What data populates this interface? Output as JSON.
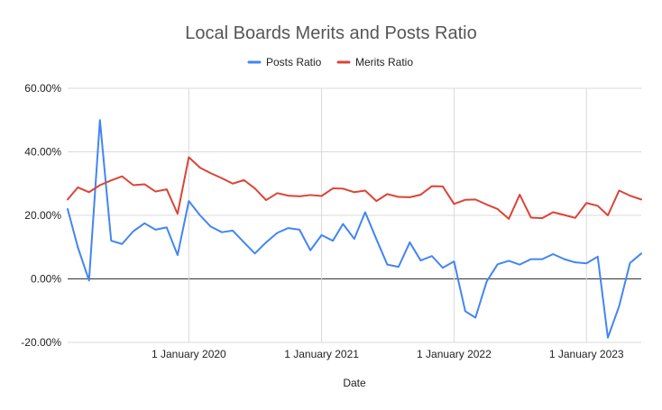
{
  "chart_data": {
    "type": "line",
    "title": "Local Boards Merits and Posts Ratio",
    "xlabel": "Date",
    "ylabel": "",
    "x_axis_type": "date",
    "x_range": [
      "2019-02-01",
      "2023-06-01"
    ],
    "x_ticks": [
      {
        "date": "2020-01-01",
        "label": "1 January 2020"
      },
      {
        "date": "2021-01-01",
        "label": "1 January 2021"
      },
      {
        "date": "2022-01-01",
        "label": "1 January 2022"
      },
      {
        "date": "2023-01-01",
        "label": "1 January 2023"
      }
    ],
    "ylim": [
      -20,
      60
    ],
    "y_ticks": [
      -20,
      0,
      20,
      40,
      60
    ],
    "y_tick_labels": [
      "-20.00%",
      "0.00%",
      "20.00%",
      "40.00%",
      "60.00%"
    ],
    "grid": true,
    "legend_position": "top",
    "x": [
      "2019-02-01",
      "2019-03-01",
      "2019-04-01",
      "2019-05-01",
      "2019-06-01",
      "2019-07-01",
      "2019-08-01",
      "2019-09-01",
      "2019-10-01",
      "2019-11-01",
      "2019-12-01",
      "2020-01-01",
      "2020-02-01",
      "2020-03-01",
      "2020-04-01",
      "2020-05-01",
      "2020-06-01",
      "2020-07-01",
      "2020-08-01",
      "2020-09-01",
      "2020-10-01",
      "2020-11-01",
      "2020-12-01",
      "2021-01-01",
      "2021-02-01",
      "2021-03-01",
      "2021-04-01",
      "2021-05-01",
      "2021-06-01",
      "2021-07-01",
      "2021-08-01",
      "2021-09-01",
      "2021-10-01",
      "2021-11-01",
      "2021-12-01",
      "2022-01-01",
      "2022-02-01",
      "2022-03-01",
      "2022-04-01",
      "2022-05-01",
      "2022-06-01",
      "2022-07-01",
      "2022-08-01",
      "2022-09-01",
      "2022-10-01",
      "2022-11-01",
      "2022-12-01",
      "2023-01-01",
      "2023-02-01",
      "2023-03-01",
      "2023-04-01",
      "2023-05-01",
      "2023-06-01"
    ],
    "series": [
      {
        "name": "Posts Ratio",
        "color": "#4285f4",
        "values": [
          22,
          10,
          -0.5,
          50,
          12,
          11,
          15,
          17.5,
          15.5,
          16.2,
          7.5,
          24.5,
          20,
          16.5,
          14.7,
          15.2,
          11.5,
          8,
          11.5,
          14.5,
          16,
          15.5,
          9,
          13.8,
          12,
          17.3,
          12.6,
          21,
          12.5,
          4.5,
          3.8,
          11.5,
          5.8,
          7.2,
          3.5,
          5.5,
          -10.2,
          -12.2,
          -0.8,
          4.6,
          5.7,
          4.5,
          6.2,
          6.2,
          7.8,
          6.2,
          5.2,
          4.9,
          7,
          -18.5,
          -8.6,
          5,
          8
        ]
      },
      {
        "name": "Merits Ratio",
        "color": "#db4437",
        "values": [
          25,
          28.8,
          27.3,
          29.5,
          31,
          32.3,
          29.5,
          29.8,
          27.5,
          28.2,
          20.5,
          38.3,
          35,
          33.3,
          31.7,
          30,
          31.1,
          28.5,
          24.8,
          27,
          26.2,
          26,
          26.4,
          26.1,
          28.5,
          28.4,
          27.3,
          27.8,
          24.5,
          26.7,
          25.8,
          25.7,
          26.5,
          29.2,
          29.1,
          23.6,
          24.9,
          25,
          23.4,
          22,
          18.9,
          26.5,
          19.3,
          19.1,
          21,
          20.1,
          19.2,
          23.9,
          23,
          20,
          27.8,
          26.2,
          25
        ]
      }
    ]
  }
}
